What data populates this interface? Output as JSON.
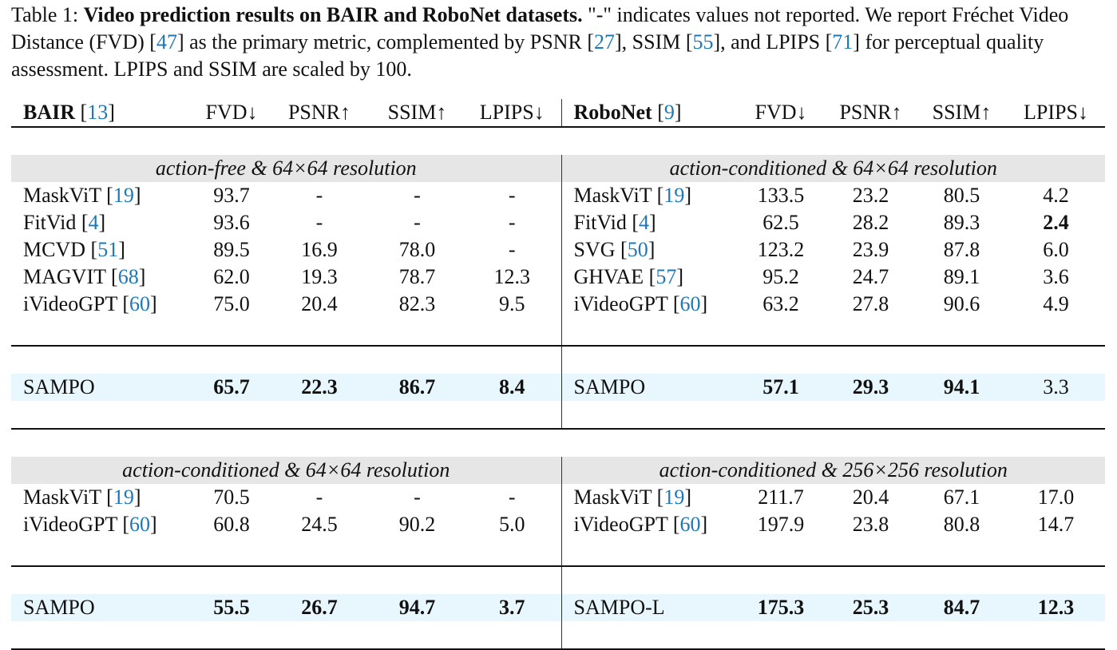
{
  "caption": {
    "label": "Table 1: ",
    "title": "Video prediction results on BAIR and RoboNet datasets.",
    "parts": [
      " \"-\" indicates values not reported. We report Fréchet Video Distance (FVD) [",
      "47",
      "] as the primary metric, complemented by PSNR [",
      "27",
      "], SSIM [",
      "55",
      "], and LPIPS [",
      "71",
      "] for perceptual quality assessment. LPIPS and SSIM are scaled by 100."
    ]
  },
  "headers": {
    "left": {
      "name": "BAIR",
      "cite": "13"
    },
    "right": {
      "name": "RoboNet",
      "cite": "9"
    },
    "metrics": [
      "FVD↓",
      "PSNR↑",
      "SSIM↑",
      "LPIPS↓"
    ]
  },
  "sections": [
    {
      "left_title": "action-free & 64×64 resolution",
      "right_title": "action-conditioned & 64×64 resolution",
      "rows": [
        {
          "l": [
            "MaskViT",
            "19",
            "93.7",
            "-",
            "-",
            "-"
          ],
          "r": [
            "MaskViT",
            "19",
            "133.5",
            "23.2",
            "80.5",
            "4.2"
          ]
        },
        {
          "l": [
            "FitVid",
            "4",
            "93.6",
            "-",
            "-",
            "-"
          ],
          "r": [
            "FitVid",
            "4",
            "62.5",
            "28.2",
            "89.3",
            "2.4"
          ],
          "rb": [
            5
          ]
        },
        {
          "l": [
            "MCVD",
            "51",
            "89.5",
            "16.9",
            "78.0",
            "-"
          ],
          "r": [
            "SVG",
            "50",
            "123.2",
            "23.9",
            "87.8",
            "6.0"
          ]
        },
        {
          "l": [
            "MAGVIT",
            "68",
            "62.0",
            "19.3",
            "78.7",
            "12.3"
          ],
          "r": [
            "GHVAE",
            "57",
            "95.2",
            "24.7",
            "89.1",
            "3.6"
          ]
        },
        {
          "l": [
            "iVideoGPT",
            "60",
            "75.0",
            "20.4",
            "82.3",
            "9.5"
          ],
          "r": [
            "iVideoGPT",
            "60",
            "63.2",
            "27.8",
            "90.6",
            "4.9"
          ]
        }
      ],
      "ours": {
        "l": [
          "SAMPO",
          "",
          "65.7",
          "22.3",
          "86.7",
          "8.4"
        ],
        "lb": [
          2,
          3,
          4,
          5
        ],
        "r": [
          "SAMPO",
          "",
          "57.1",
          "29.3",
          "94.1",
          "3.3"
        ],
        "rb": [
          2,
          3,
          4
        ]
      }
    },
    {
      "left_title": "action-conditioned & 64×64 resolution",
      "right_title": "action-conditioned & 256×256 resolution",
      "rows": [
        {
          "l": [
            "MaskViT",
            "19",
            "70.5",
            "-",
            "-",
            "-"
          ],
          "r": [
            "MaskViT",
            "19",
            "211.7",
            "20.4",
            "67.1",
            "17.0"
          ]
        },
        {
          "l": [
            "iVideoGPT",
            "60",
            "60.8",
            "24.5",
            "90.2",
            "5.0"
          ],
          "r": [
            "iVideoGPT",
            "60",
            "197.9",
            "23.8",
            "80.8",
            "14.7"
          ]
        }
      ],
      "ours": {
        "l": [
          "SAMPO",
          "",
          "55.5",
          "26.7",
          "94.7",
          "3.7"
        ],
        "lb": [
          2,
          3,
          4,
          5
        ],
        "r": [
          "SAMPO-L",
          "",
          "175.3",
          "25.3",
          "84.7",
          "12.3"
        ],
        "rb": [
          2,
          3,
          4,
          5
        ]
      }
    }
  ],
  "colors": {
    "cite": "#1f77b4",
    "section_bg": "#e6e6e6",
    "ours_bg": "#e8f6fd"
  }
}
